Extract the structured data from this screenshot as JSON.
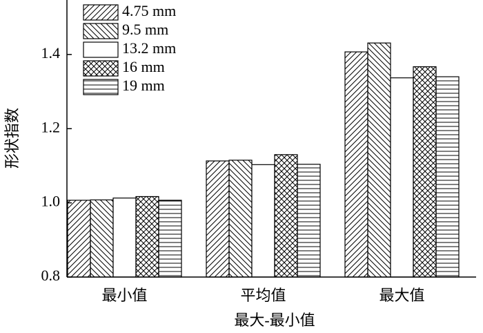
{
  "chart_data": {
    "type": "bar",
    "x_label": "最大-最小值",
    "y_label": "形状指数",
    "categories": [
      "最小值",
      "平均值",
      "最大值"
    ],
    "series": [
      {
        "name": "4.75 mm",
        "pattern": "forward-hatch",
        "values": [
          1.007,
          1.113,
          1.407
        ]
      },
      {
        "name": "9.5 mm",
        "pattern": "back-hatch",
        "values": [
          1.008,
          1.115,
          1.431
        ]
      },
      {
        "name": "13.2 mm",
        "pattern": "none",
        "values": [
          1.013,
          1.103,
          1.337
        ]
      },
      {
        "name": "16 mm",
        "pattern": "cross-hatch",
        "values": [
          1.017,
          1.13,
          1.367
        ]
      },
      {
        "name": "19 mm",
        "pattern": "horizontal",
        "values": [
          1.007,
          1.104,
          1.34
        ]
      }
    ],
    "ylim": [
      0.8,
      1.545
    ],
    "yticks": [
      0.8,
      {
        "value": 1,
        "label": "1.0"
      },
      1.2,
      1.4
    ],
    "legend": "upper-left"
  }
}
